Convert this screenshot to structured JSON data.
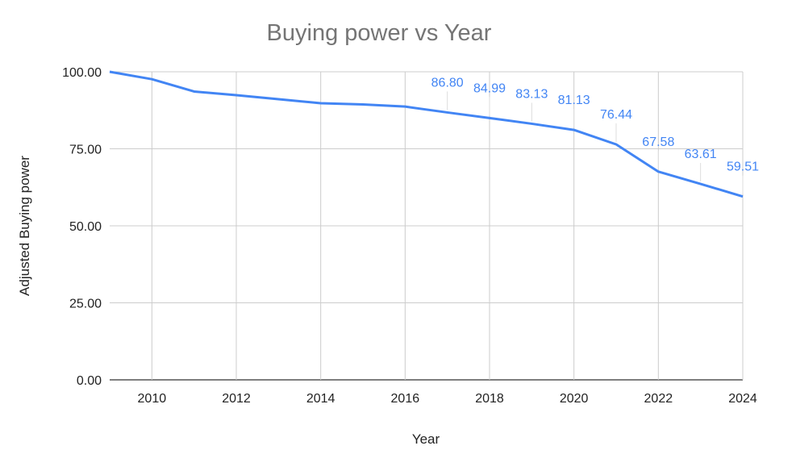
{
  "chart_data": {
    "type": "line",
    "title": "Buying power vs Year",
    "xlabel": "Year",
    "ylabel": "Adjusted Buying power",
    "xlim": [
      2009,
      2024
    ],
    "ylim": [
      0,
      100
    ],
    "grid": true,
    "x_ticks": [
      2010,
      2012,
      2014,
      2016,
      2018,
      2020,
      2022,
      2024
    ],
    "y_ticks": [
      "0.00",
      "25.00",
      "50.00",
      "75.00",
      "100.00"
    ],
    "series": [
      {
        "name": "Adjusted Buying power",
        "color": "#4285f4",
        "x": [
          2009,
          2010,
          2011,
          2012,
          2013,
          2014,
          2015,
          2016,
          2017,
          2018,
          2019,
          2020,
          2021,
          2022,
          2023,
          2024
        ],
        "values": [
          100.0,
          97.6,
          93.6,
          92.4,
          91.1,
          89.8,
          89.4,
          88.7,
          86.8,
          84.99,
          83.13,
          81.13,
          76.44,
          67.58,
          63.61,
          59.51
        ],
        "labels": {
          "2017": "86.80",
          "2018": "84.99",
          "2019": "83.13",
          "2020": "81.13",
          "2021": "76.44",
          "2022": "67.58",
          "2023": "63.61",
          "2024": "59.51"
        }
      }
    ]
  }
}
